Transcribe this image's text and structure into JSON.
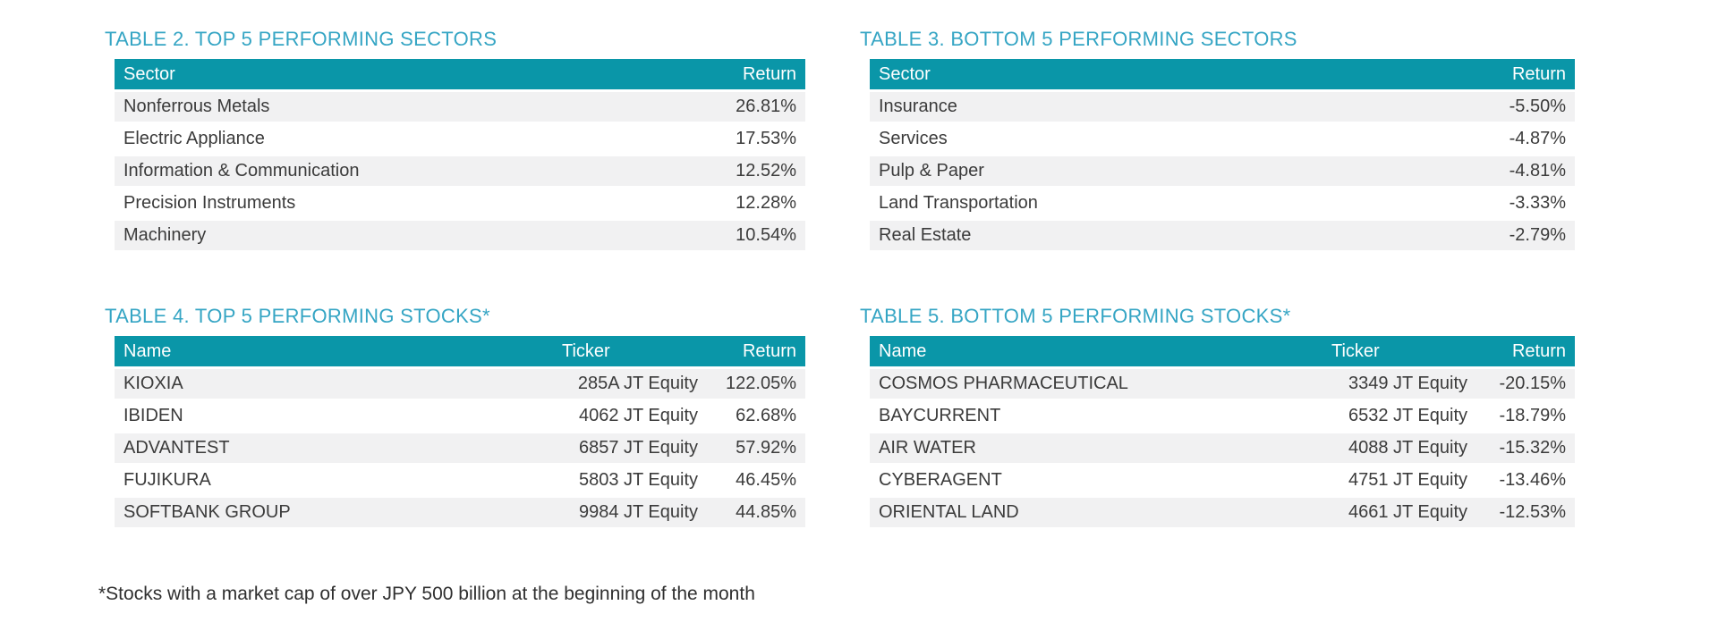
{
  "colors": {
    "header_bg": "#0A96A8",
    "title_text": "#35A5C4",
    "row_alt_bg": "#F1F1F2",
    "body_text": "#3B3B3B",
    "header_text": "#FFFFFF"
  },
  "tables": [
    {
      "title": "TABLE 2. TOP 5 PERFORMING SECTORS",
      "columns": [
        "Sector",
        "Return"
      ],
      "rows": [
        [
          "Nonferrous Metals",
          "26.81%"
        ],
        [
          "Electric Appliance",
          "17.53%"
        ],
        [
          "Information & Communication",
          "12.52%"
        ],
        [
          "Precision Instruments",
          "12.28%"
        ],
        [
          "Machinery",
          "10.54%"
        ]
      ]
    },
    {
      "title": "TABLE 3. BOTTOM 5 PERFORMING SECTORS",
      "columns": [
        "Sector",
        "Return"
      ],
      "rows": [
        [
          "Insurance",
          "-5.50%"
        ],
        [
          "Services",
          "-4.87%"
        ],
        [
          "Pulp & Paper",
          "-4.81%"
        ],
        [
          "Land Transportation",
          "-3.33%"
        ],
        [
          "Real Estate",
          "-2.79%"
        ]
      ]
    },
    {
      "title": "TABLE 4. TOP 5 PERFORMING STOCKS*",
      "columns": [
        "Name",
        "Ticker",
        "Return"
      ],
      "rows": [
        [
          "KIOXIA",
          "285A JT Equity",
          "122.05%"
        ],
        [
          "IBIDEN",
          "4062 JT Equity",
          "62.68%"
        ],
        [
          "ADVANTEST",
          "6857 JT Equity",
          "57.92%"
        ],
        [
          "FUJIKURA",
          "5803 JT Equity",
          "46.45%"
        ],
        [
          "SOFTBANK GROUP",
          "9984 JT Equity",
          "44.85%"
        ]
      ]
    },
    {
      "title": "TABLE 5. BOTTOM 5 PERFORMING STOCKS*",
      "columns": [
        "Name",
        "Ticker",
        "Return"
      ],
      "rows": [
        [
          "COSMOS PHARMACEUTICAL",
          "3349 JT Equity",
          "-20.15%"
        ],
        [
          "BAYCURRENT",
          "6532 JT Equity",
          "-18.79%"
        ],
        [
          "AIR WATER",
          "4088 JT Equity",
          "-15.32%"
        ],
        [
          "CYBERAGENT",
          "4751 JT Equity",
          "-13.46%"
        ],
        [
          "ORIENTAL LAND",
          "4661 JT Equity",
          "-12.53%"
        ]
      ]
    }
  ],
  "footnote": "*Stocks with a market cap of over JPY 500 billion at the beginning of the month"
}
